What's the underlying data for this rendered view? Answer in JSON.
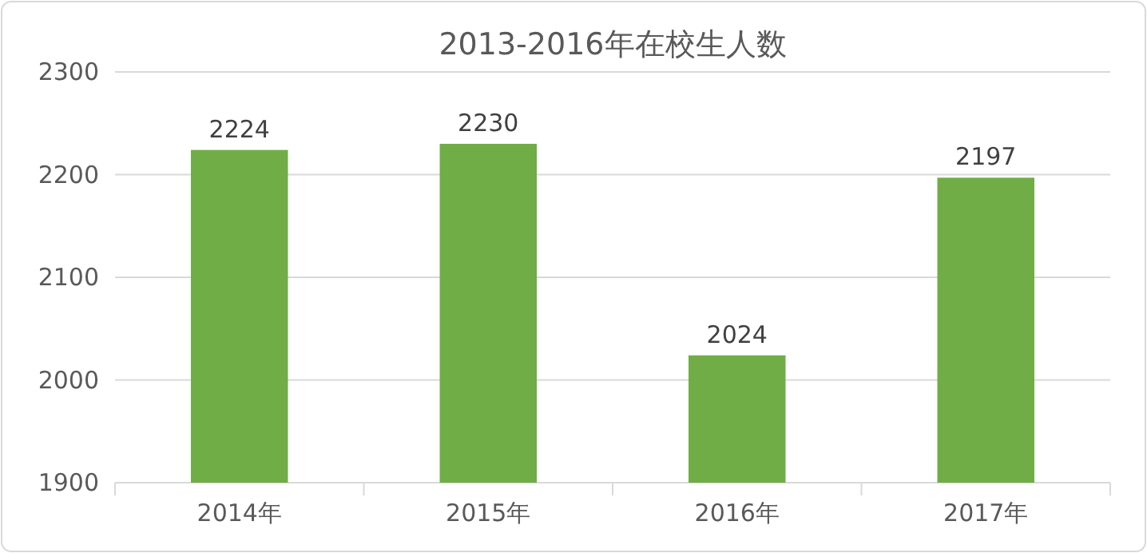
{
  "chart_data": {
    "type": "bar",
    "title": "2013-2016年在校生人数",
    "categories": [
      "2014年",
      "2015年",
      "2016年",
      "2017年"
    ],
    "values": [
      2224,
      2230,
      2024,
      2197
    ],
    "color": "#70ad47",
    "ylim": [
      1900,
      2300
    ],
    "yticks": [
      1900,
      2000,
      2100,
      2200,
      2300
    ],
    "grid": "y",
    "data_labels": true
  }
}
